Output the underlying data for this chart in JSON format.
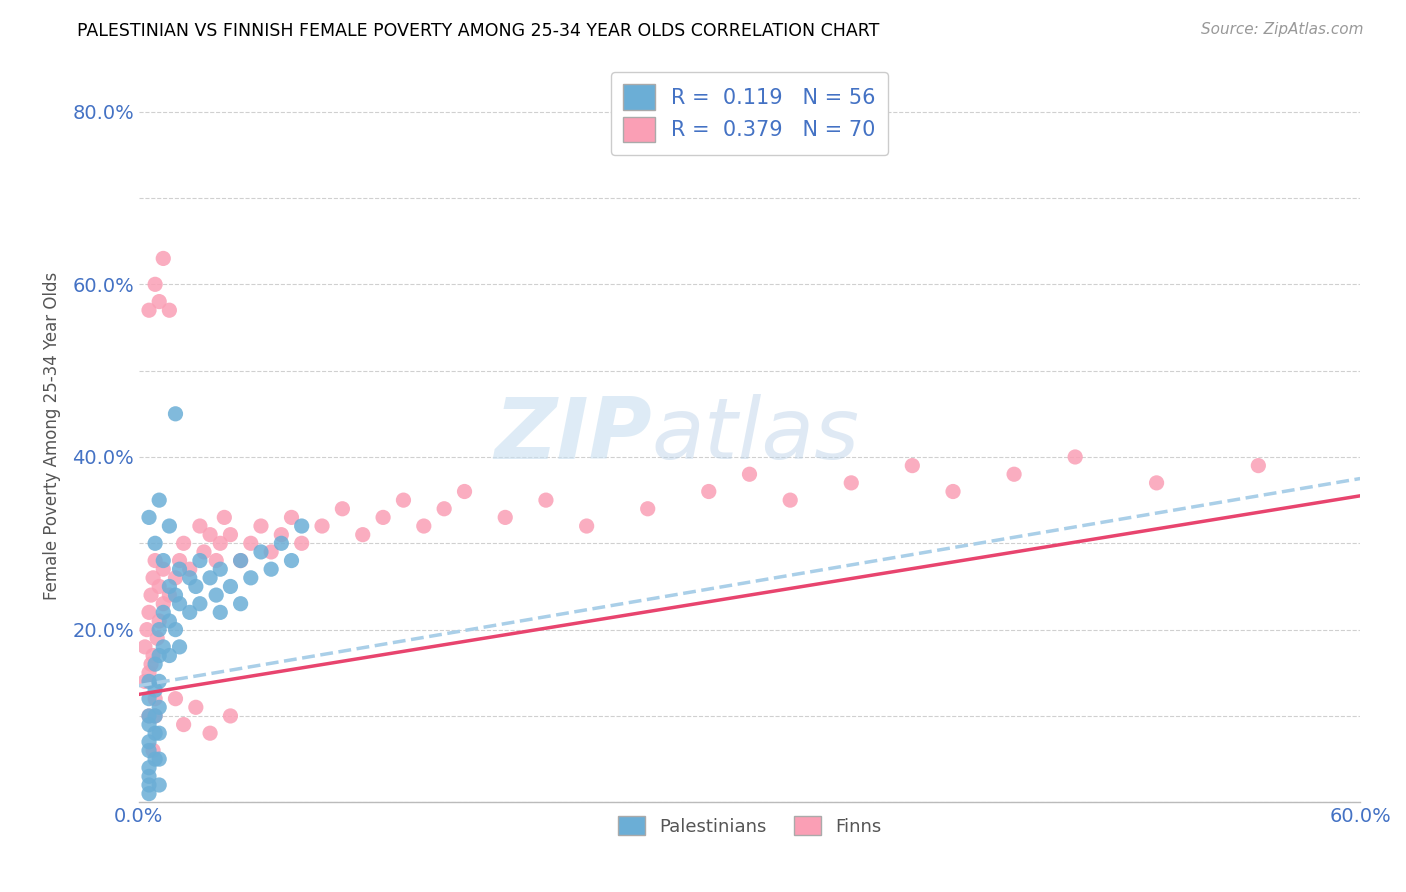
{
  "title": "PALESTINIAN VS FINNISH FEMALE POVERTY AMONG 25-34 YEAR OLDS CORRELATION CHART",
  "source": "Source: ZipAtlas.com",
  "ylabel": "Female Poverty Among 25-34 Year Olds",
  "xlim": [
    0.0,
    0.6
  ],
  "ylim": [
    0.0,
    0.85
  ],
  "xticks": [
    0.0,
    0.1,
    0.2,
    0.3,
    0.4,
    0.5,
    0.6
  ],
  "yticks": [
    0.0,
    0.1,
    0.2,
    0.3,
    0.4,
    0.5,
    0.6,
    0.7,
    0.8
  ],
  "R_pal": 0.119,
  "N_pal": 56,
  "R_fin": 0.379,
  "N_fin": 70,
  "pal_color": "#6baed6",
  "fin_color": "#fa9fb5",
  "pal_trend_color": "#aacfe8",
  "fin_trend_color": "#e8446e",
  "watermark_zip": "ZIP",
  "watermark_atlas": "atlas",
  "legend_palestinians": "Palestinians",
  "legend_finns": "Finns",
  "pal_trend_start": 0.135,
  "pal_trend_end": 0.375,
  "fin_trend_start": 0.125,
  "fin_trend_end": 0.355,
  "palestinians_x": [
    0.005,
    0.005,
    0.005,
    0.005,
    0.005,
    0.005,
    0.005,
    0.005,
    0.005,
    0.005,
    0.008,
    0.008,
    0.008,
    0.008,
    0.008,
    0.01,
    0.01,
    0.01,
    0.01,
    0.01,
    0.01,
    0.01,
    0.012,
    0.012,
    0.015,
    0.015,
    0.015,
    0.018,
    0.018,
    0.02,
    0.02,
    0.02,
    0.025,
    0.025,
    0.028,
    0.03,
    0.03,
    0.035,
    0.038,
    0.04,
    0.04,
    0.045,
    0.05,
    0.05,
    0.055,
    0.06,
    0.065,
    0.07,
    0.075,
    0.08,
    0.005,
    0.008,
    0.01,
    0.012,
    0.015,
    0.018
  ],
  "palestinians_y": [
    0.14,
    0.12,
    0.1,
    0.09,
    0.07,
    0.06,
    0.04,
    0.03,
    0.02,
    0.01,
    0.16,
    0.13,
    0.1,
    0.08,
    0.05,
    0.2,
    0.17,
    0.14,
    0.11,
    0.08,
    0.05,
    0.02,
    0.22,
    0.18,
    0.25,
    0.21,
    0.17,
    0.24,
    0.2,
    0.27,
    0.23,
    0.18,
    0.26,
    0.22,
    0.25,
    0.28,
    0.23,
    0.26,
    0.24,
    0.27,
    0.22,
    0.25,
    0.28,
    0.23,
    0.26,
    0.29,
    0.27,
    0.3,
    0.28,
    0.32,
    0.33,
    0.3,
    0.35,
    0.28,
    0.32,
    0.45
  ],
  "finns_x": [
    0.003,
    0.005,
    0.007,
    0.003,
    0.005,
    0.008,
    0.004,
    0.006,
    0.008,
    0.005,
    0.007,
    0.006,
    0.009,
    0.007,
    0.01,
    0.008,
    0.012,
    0.01,
    0.012,
    0.015,
    0.018,
    0.02,
    0.022,
    0.025,
    0.03,
    0.032,
    0.035,
    0.038,
    0.04,
    0.042,
    0.045,
    0.05,
    0.055,
    0.06,
    0.065,
    0.07,
    0.075,
    0.08,
    0.09,
    0.1,
    0.11,
    0.12,
    0.13,
    0.14,
    0.15,
    0.16,
    0.18,
    0.2,
    0.22,
    0.25,
    0.28,
    0.3,
    0.32,
    0.35,
    0.38,
    0.4,
    0.43,
    0.46,
    0.5,
    0.55,
    0.005,
    0.008,
    0.01,
    0.012,
    0.015,
    0.018,
    0.022,
    0.028,
    0.035,
    0.045
  ],
  "finns_y": [
    0.14,
    0.1,
    0.06,
    0.18,
    0.15,
    0.1,
    0.2,
    0.16,
    0.12,
    0.22,
    0.17,
    0.24,
    0.19,
    0.26,
    0.21,
    0.28,
    0.23,
    0.25,
    0.27,
    0.24,
    0.26,
    0.28,
    0.3,
    0.27,
    0.32,
    0.29,
    0.31,
    0.28,
    0.3,
    0.33,
    0.31,
    0.28,
    0.3,
    0.32,
    0.29,
    0.31,
    0.33,
    0.3,
    0.32,
    0.34,
    0.31,
    0.33,
    0.35,
    0.32,
    0.34,
    0.36,
    0.33,
    0.35,
    0.32,
    0.34,
    0.36,
    0.38,
    0.35,
    0.37,
    0.39,
    0.36,
    0.38,
    0.4,
    0.37,
    0.39,
    0.57,
    0.6,
    0.58,
    0.63,
    0.57,
    0.12,
    0.09,
    0.11,
    0.08,
    0.1
  ]
}
